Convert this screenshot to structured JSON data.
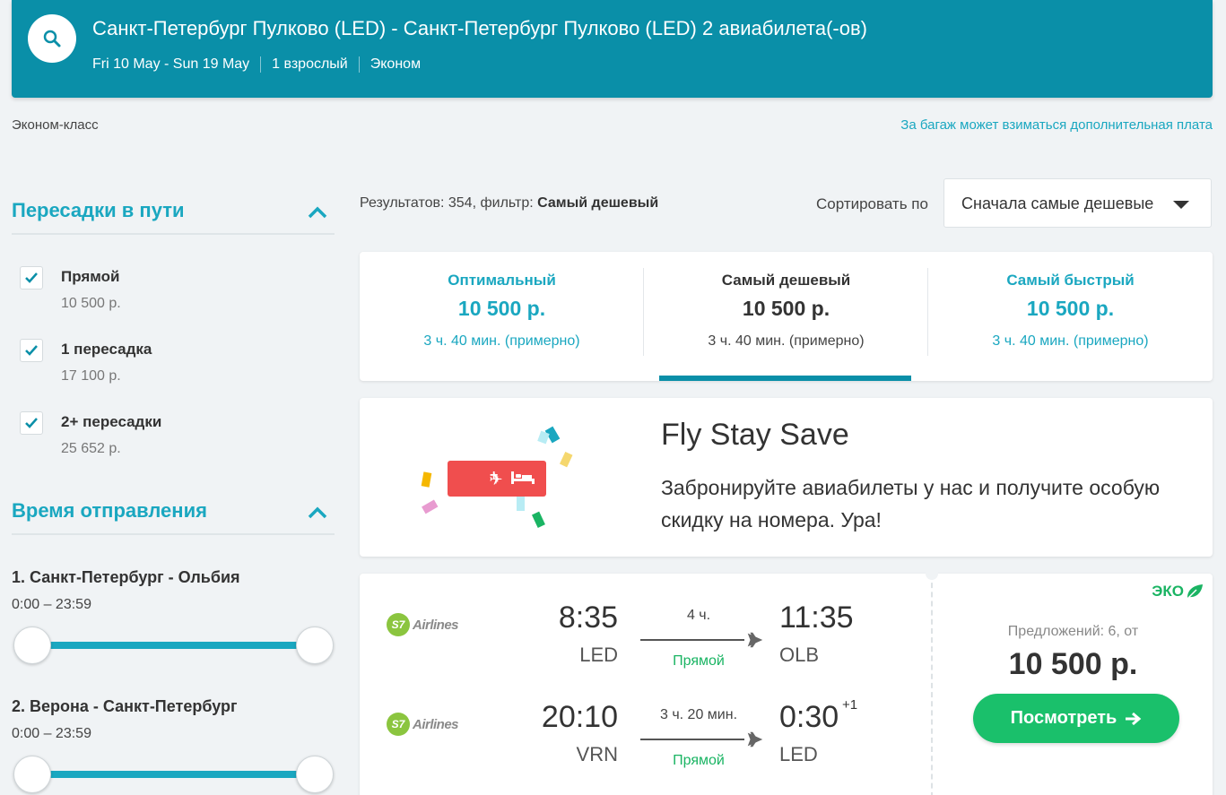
{
  "header": {
    "title": "Санкт-Петербург Пулково (LED) - Санкт-Петербург Пулково (LED) 2 авиабилета(-ов)",
    "dates": "Fri 10 May - Sun 19 May",
    "passengers": "1 взрослый",
    "cabin": "Эконом"
  },
  "info_bar": {
    "class_label": "Эконом-класс",
    "baggage_link": "За багаж может взиматься дополнительная плата"
  },
  "sidebar": {
    "stops_heading": "Пересадки в пути",
    "stops": [
      {
        "label": "Прямой",
        "price": "10 500 р.",
        "checked": true
      },
      {
        "label": "1 пересадка",
        "price": "17 100 р.",
        "checked": true
      },
      {
        "label": "2+ пересадки",
        "price": "25 652 р.",
        "checked": true
      }
    ],
    "departure_heading": "Время отправления",
    "routes": [
      {
        "title": "1. Санкт-Петербург - Ольбия",
        "range": "0:00 – 23:59"
      },
      {
        "title": "2. Верона - Санкт-Петербург",
        "range": "0:00 – 23:59"
      }
    ]
  },
  "results": {
    "prefix": "Результатов: 354, фильтр:",
    "filter": "Самый дешевый",
    "sort_label": "Сортировать по",
    "sort_value": "Сначала самые дешевые"
  },
  "tabs": [
    {
      "label": "Оптимальный",
      "price": "10 500 р.",
      "duration": "3 ч. 40 мин. (примерно)"
    },
    {
      "label": "Самый дешевый",
      "price": "10 500 р.",
      "duration": "3 ч. 40 мин. (примерно)",
      "active": true
    },
    {
      "label": "Самый быстрый",
      "price": "10 500 р.",
      "duration": "3 ч. 40 мин. (примерно)"
    }
  ],
  "promo": {
    "title": "Fly Stay Save",
    "text": "Забронируйте авиабилеты у нас и получите особую скидку на номера. Ура!",
    "badge_plus": "+"
  },
  "flight": {
    "eco_label": "ЭКО",
    "offers": "Предложений: 6, от",
    "price": "10 500 р.",
    "button_label": "Посмотреть",
    "legs": [
      {
        "airline": "Airlines",
        "airline_mark": "S7",
        "dep_time": "8:35",
        "dep_code": "LED",
        "duration": "4 ч.",
        "type": "Прямой",
        "arr_time": "11:35",
        "arr_code": "OLB",
        "plus_day": ""
      },
      {
        "airline": "Airlines",
        "airline_mark": "S7",
        "dep_time": "20:10",
        "dep_code": "VRN",
        "duration": "3 ч. 20 мин.",
        "type": "Прямой",
        "arr_time": "0:30",
        "arr_code": "LED",
        "plus_day": "+1"
      }
    ]
  },
  "colors": {
    "header_bg": "#0a8fa8",
    "accent": "#1aa7c0",
    "green": "#1ac06b"
  }
}
